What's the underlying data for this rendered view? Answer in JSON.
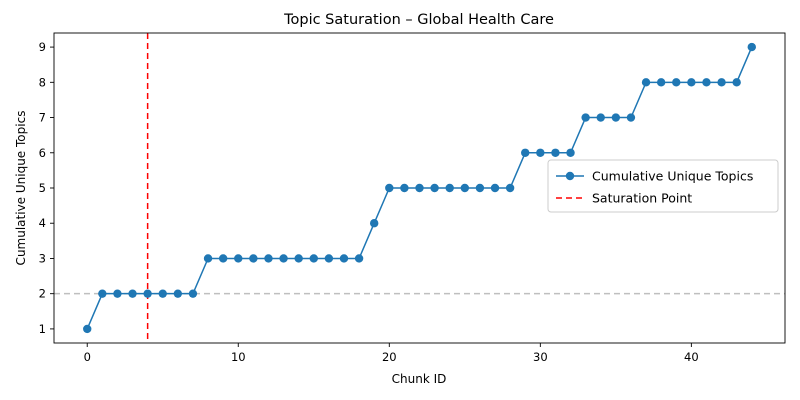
{
  "chart_data": {
    "type": "line",
    "title": "Topic Saturation – Global Health Care",
    "xlabel": "Chunk ID",
    "ylabel": "Cumulative Unique Topics",
    "xlim": [
      -2.2,
      46.2
    ],
    "ylim": [
      0.6,
      9.4
    ],
    "xticks": [
      0,
      10,
      20,
      30,
      40
    ],
    "yticks": [
      1,
      2,
      3,
      4,
      5,
      6,
      7,
      8,
      9
    ],
    "grid": false,
    "legend_position": "center-right",
    "series": [
      {
        "name": "Cumulative Unique Topics",
        "color": "#1f77b4",
        "marker": "circle",
        "x": [
          0,
          1,
          2,
          3,
          4,
          5,
          6,
          7,
          8,
          9,
          10,
          11,
          12,
          13,
          14,
          15,
          16,
          17,
          18,
          19,
          20,
          21,
          22,
          23,
          24,
          25,
          26,
          27,
          28,
          29,
          30,
          31,
          32,
          33,
          34,
          35,
          36,
          37,
          38,
          39,
          40,
          41,
          42,
          43,
          44
        ],
        "y": [
          1,
          2,
          2,
          2,
          2,
          2,
          2,
          2,
          3,
          3,
          3,
          3,
          3,
          3,
          3,
          3,
          3,
          3,
          3,
          4,
          5,
          5,
          5,
          5,
          5,
          5,
          5,
          5,
          5,
          6,
          6,
          6,
          6,
          7,
          7,
          7,
          7,
          8,
          8,
          8,
          8,
          8,
          8,
          8,
          9
        ]
      }
    ],
    "annotations": [
      {
        "name": "Saturation Point",
        "type": "vline",
        "x": 4,
        "color": "#ff0000",
        "style": "dashed"
      },
      {
        "type": "hline",
        "y": 2,
        "color": "#bfbfbf",
        "style": "dashed"
      }
    ]
  }
}
